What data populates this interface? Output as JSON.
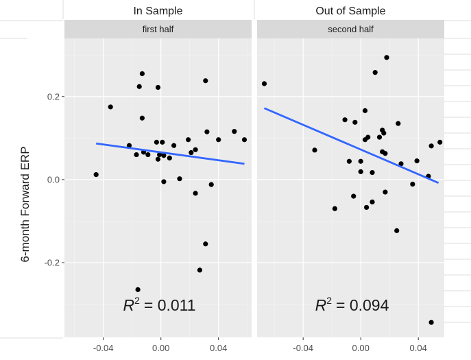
{
  "chart_data": {
    "type": "scatter",
    "ylabel": "6-month Forward ERP",
    "yticks": [
      -0.2,
      0.0,
      0.2
    ],
    "ytick_labels": [
      "-0.2",
      "0.0",
      "0.2"
    ],
    "grid": true,
    "panels": [
      {
        "title": "In Sample",
        "strip": "first half",
        "xlim": [
          -0.067,
          0.063
        ],
        "ylim": [
          -0.38,
          0.34
        ],
        "xticks": [
          -0.04,
          0.0,
          0.04
        ],
        "xtick_labels": [
          "-0.04",
          "0.00",
          "0.04"
        ],
        "r2_label": "R",
        "r2_sup": "2",
        "r2_value": "= 0.011",
        "fit": {
          "x": [
            -0.045,
            0.058
          ],
          "y": [
            0.087,
            0.038
          ]
        },
        "points": [
          [
            -0.045,
            0.012
          ],
          [
            -0.035,
            0.175
          ],
          [
            -0.022,
            0.082
          ],
          [
            -0.017,
            0.06
          ],
          [
            -0.015,
            0.224
          ],
          [
            -0.013,
            0.255
          ],
          [
            -0.013,
            0.148
          ],
          [
            -0.012,
            0.066
          ],
          [
            -0.009,
            0.06
          ],
          [
            -0.003,
            0.09
          ],
          [
            -0.002,
            0.222
          ],
          [
            -0.002,
            0.049
          ],
          [
            -0.001,
            0.06
          ],
          [
            0.001,
            0.09
          ],
          [
            0.002,
            0.058
          ],
          [
            0.002,
            -0.005
          ],
          [
            0.006,
            0.052
          ],
          [
            0.009,
            0.082
          ],
          [
            0.013,
            0.002
          ],
          [
            0.019,
            0.096
          ],
          [
            0.021,
            0.065
          ],
          [
            0.024,
            0.072
          ],
          [
            0.024,
            -0.033
          ],
          [
            0.027,
            -0.218
          ],
          [
            0.031,
            -0.155
          ],
          [
            0.031,
            0.238
          ],
          [
            0.032,
            0.115
          ],
          [
            0.035,
            -0.012
          ],
          [
            0.04,
            0.096
          ],
          [
            0.051,
            0.116
          ],
          [
            0.058,
            0.096
          ],
          [
            -0.016,
            -0.265
          ]
        ]
      },
      {
        "title": "Out of Sample",
        "strip": "second half",
        "xlim": [
          -0.072,
          0.058
        ],
        "ylim": [
          -0.38,
          0.34
        ],
        "xticks": [
          -0.04,
          0.0,
          0.04
        ],
        "xtick_labels": [
          "-0.04",
          "0.00",
          "0.04"
        ],
        "r2_label": "R",
        "r2_sup": "2",
        "r2_value": "= 0.094",
        "fit": {
          "x": [
            -0.067,
            0.054
          ],
          "y": [
            0.172,
            -0.008
          ]
        },
        "points": [
          [
            -0.067,
            0.231
          ],
          [
            -0.032,
            0.071
          ],
          [
            -0.018,
            -0.07
          ],
          [
            -0.011,
            0.144
          ],
          [
            -0.008,
            0.044
          ],
          [
            -0.005,
            -0.04
          ],
          [
            -0.004,
            0.138
          ],
          [
            0.0,
            0.044
          ],
          [
            0.0,
            0.019
          ],
          [
            0.003,
            0.166
          ],
          [
            0.003,
            0.096
          ],
          [
            0.004,
            -0.067
          ],
          [
            0.005,
            0.102
          ],
          [
            0.008,
            0.017
          ],
          [
            0.008,
            -0.054
          ],
          [
            0.01,
            0.258
          ],
          [
            0.013,
            0.102
          ],
          [
            0.015,
            0.119
          ],
          [
            0.015,
            0.067
          ],
          [
            0.016,
            0.112
          ],
          [
            0.017,
            0.063
          ],
          [
            0.017,
            -0.03
          ],
          [
            0.018,
            0.294
          ],
          [
            0.025,
            -0.123
          ],
          [
            0.026,
            0.135
          ],
          [
            0.028,
            0.038
          ],
          [
            0.036,
            -0.011
          ],
          [
            0.039,
            0.045
          ],
          [
            0.047,
            0.008
          ],
          [
            0.049,
            0.081
          ],
          [
            0.049,
            -0.344
          ],
          [
            0.055,
            0.09
          ]
        ]
      }
    ],
    "colors": {
      "panel_bg": "#ebebeb",
      "strip_bg": "#d9d9d9",
      "grid_major": "#ffffff",
      "point": "#000000",
      "fit_line": "#3366ff",
      "text": "#1a1a1a",
      "tick_text": "#4d4d4d"
    }
  }
}
